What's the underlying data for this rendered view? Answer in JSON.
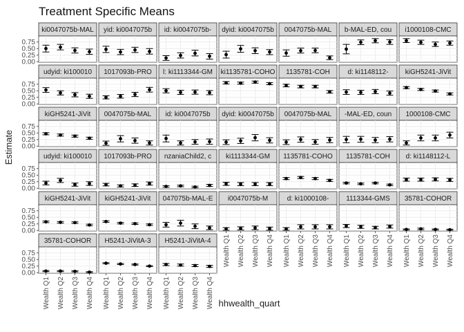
{
  "chart_data": {
    "type": "scatter",
    "title": "Treatment Specific Means",
    "xlabel": "hhwealth_quart",
    "ylabel": "Estimate",
    "categories": [
      "Wealth Q1",
      "Wealth Q2",
      "Wealth Q3",
      "Wealth Q4"
    ],
    "y_ticks": [
      "0.00",
      "0.25",
      "0.50",
      "0.75"
    ],
    "ylim": [
      -0.02,
      0.98
    ],
    "grid": true,
    "error_bars": true,
    "panels": [
      {
        "strip": "ki0047075b-MAL",
        "points": [
          {
            "y": 0.5,
            "lo": 0.37,
            "hi": 0.63
          },
          {
            "y": 0.55,
            "lo": 0.45,
            "hi": 0.66
          },
          {
            "y": 0.43,
            "lo": 0.33,
            "hi": 0.53
          },
          {
            "y": 0.38,
            "lo": 0.28,
            "hi": 0.48
          }
        ]
      },
      {
        "strip": "yid: ki0047075b",
        "points": [
          {
            "y": 0.47,
            "lo": 0.35,
            "hi": 0.59
          },
          {
            "y": 0.37,
            "lo": 0.27,
            "hi": 0.47
          },
          {
            "y": 0.45,
            "lo": 0.35,
            "hi": 0.55
          },
          {
            "y": 0.39,
            "lo": 0.29,
            "hi": 0.5
          }
        ]
      },
      {
        "strip": "id: ki0047075b-",
        "points": [
          {
            "y": 0.14,
            "lo": 0.05,
            "hi": 0.23
          },
          {
            "y": 0.24,
            "lo": 0.14,
            "hi": 0.34
          },
          {
            "y": 0.32,
            "lo": 0.22,
            "hi": 0.44
          },
          {
            "y": 0.21,
            "lo": 0.1,
            "hi": 0.31
          }
        ]
      },
      {
        "strip": "dyid: ki0047075b",
        "points": [
          {
            "y": 0.27,
            "lo": 0.14,
            "hi": 0.4
          },
          {
            "y": 0.49,
            "lo": 0.36,
            "hi": 0.62
          },
          {
            "y": 0.42,
            "lo": 0.31,
            "hi": 0.53
          },
          {
            "y": 0.37,
            "lo": 0.27,
            "hi": 0.46
          }
        ]
      },
      {
        "strip": "0047075b-MAL",
        "points": [
          {
            "y": 0.33,
            "lo": 0.21,
            "hi": 0.45
          },
          {
            "y": 0.42,
            "lo": 0.33,
            "hi": 0.52
          },
          {
            "y": 0.43,
            "lo": 0.34,
            "hi": 0.52
          },
          {
            "y": 0.15,
            "lo": 0.08,
            "hi": 0.22
          }
        ]
      },
      {
        "strip": "b-MAL-ED, cou",
        "points": [
          {
            "y": 0.48,
            "lo": 0.3,
            "hi": 0.66
          },
          {
            "y": 0.74,
            "lo": 0.65,
            "hi": 0.83
          },
          {
            "y": 0.8,
            "lo": 0.72,
            "hi": 0.88
          },
          {
            "y": 0.75,
            "lo": 0.66,
            "hi": 0.84
          }
        ]
      },
      {
        "strip": "i1000108-CMC",
        "points": [
          {
            "y": 0.8,
            "lo": 0.73,
            "hi": 0.88
          },
          {
            "y": 0.74,
            "lo": 0.66,
            "hi": 0.82
          },
          {
            "y": 0.66,
            "lo": 0.58,
            "hi": 0.75
          },
          {
            "y": 0.71,
            "lo": 0.63,
            "hi": 0.79
          }
        ]
      },
      {
        "strip": "udyid: ki100010",
        "points": [
          {
            "y": 0.53,
            "lo": 0.44,
            "hi": 0.62
          },
          {
            "y": 0.42,
            "lo": 0.34,
            "hi": 0.5
          },
          {
            "y": 0.35,
            "lo": 0.27,
            "hi": 0.43
          },
          {
            "y": 0.29,
            "lo": 0.21,
            "hi": 0.37
          }
        ]
      },
      {
        "strip": "1017093b-PRO",
        "points": [
          {
            "y": 0.25,
            "lo": 0.19,
            "hi": 0.31
          },
          {
            "y": 0.29,
            "lo": 0.22,
            "hi": 0.36
          },
          {
            "y": 0.36,
            "lo": 0.28,
            "hi": 0.44
          },
          {
            "y": 0.54,
            "lo": 0.45,
            "hi": 0.63
          }
        ]
      },
      {
        "strip": "l: ki1113344-GM",
        "points": [
          {
            "y": 0.5,
            "lo": 0.42,
            "hi": 0.58
          },
          {
            "y": 0.44,
            "lo": 0.36,
            "hi": 0.52
          },
          {
            "y": 0.45,
            "lo": 0.37,
            "hi": 0.53
          },
          {
            "y": 0.43,
            "lo": 0.35,
            "hi": 0.51
          }
        ]
      },
      {
        "strip": "ki1135781-COHO",
        "points": [
          {
            "y": 0.8,
            "lo": 0.76,
            "hi": 0.85
          },
          {
            "y": 0.79,
            "lo": 0.75,
            "hi": 0.83
          },
          {
            "y": 0.83,
            "lo": 0.79,
            "hi": 0.87
          },
          {
            "y": 0.77,
            "lo": 0.73,
            "hi": 0.81
          }
        ]
      },
      {
        "strip": "1135781-COH",
        "points": [
          {
            "y": 0.7,
            "lo": 0.65,
            "hi": 0.75
          },
          {
            "y": 0.66,
            "lo": 0.61,
            "hi": 0.71
          },
          {
            "y": 0.66,
            "lo": 0.61,
            "hi": 0.71
          },
          {
            "y": 0.46,
            "lo": 0.41,
            "hi": 0.51
          }
        ]
      },
      {
        "strip": "d: ki1148112-",
        "points": [
          {
            "y": 0.45,
            "lo": 0.36,
            "hi": 0.54
          },
          {
            "y": 0.44,
            "lo": 0.36,
            "hi": 0.52
          },
          {
            "y": 0.47,
            "lo": 0.39,
            "hi": 0.55
          },
          {
            "y": 0.41,
            "lo": 0.33,
            "hi": 0.49
          }
        ]
      },
      {
        "strip": "kiGH5241-JiVit",
        "points": [
          {
            "y": 0.62,
            "lo": 0.58,
            "hi": 0.66
          },
          {
            "y": 0.55,
            "lo": 0.51,
            "hi": 0.59
          },
          {
            "y": 0.49,
            "lo": 0.45,
            "hi": 0.53
          },
          {
            "y": 0.38,
            "lo": 0.34,
            "hi": 0.42
          }
        ]
      },
      {
        "strip": "kiGH5241-JiVit",
        "points": [
          {
            "y": 0.47,
            "lo": 0.43,
            "hi": 0.51
          },
          {
            "y": 0.42,
            "lo": 0.38,
            "hi": 0.46
          },
          {
            "y": 0.38,
            "lo": 0.34,
            "hi": 0.42
          },
          {
            "y": 0.3,
            "lo": 0.26,
            "hi": 0.34
          }
        ]
      },
      {
        "strip": "0047075b-MAL",
        "points": [
          {
            "y": 0.11,
            "lo": 0.03,
            "hi": 0.19
          },
          {
            "y": 0.28,
            "lo": 0.16,
            "hi": 0.4
          },
          {
            "y": 0.21,
            "lo": 0.11,
            "hi": 0.31
          },
          {
            "y": 0.12,
            "lo": 0.04,
            "hi": 0.2
          }
        ]
      },
      {
        "strip": "id: ki0047075b",
        "points": [
          {
            "y": 0.29,
            "lo": 0.16,
            "hi": 0.42
          },
          {
            "y": 0.12,
            "lo": 0.04,
            "hi": 0.2
          },
          {
            "y": 0.16,
            "lo": 0.07,
            "hi": 0.25
          },
          {
            "y": 0.17,
            "lo": 0.07,
            "hi": 0.27
          }
        ]
      },
      {
        "strip": "dyid: ki0047075b",
        "points": [
          {
            "y": 0.15,
            "lo": 0.06,
            "hi": 0.24
          },
          {
            "y": 0.2,
            "lo": 0.1,
            "hi": 0.3
          },
          {
            "y": 0.32,
            "lo": 0.2,
            "hi": 0.44
          },
          {
            "y": 0.22,
            "lo": 0.12,
            "hi": 0.32
          }
        ]
      },
      {
        "strip": "0047075b-MAL",
        "points": [
          {
            "y": 0.15,
            "lo": 0.06,
            "hi": 0.24
          },
          {
            "y": 0.25,
            "lo": 0.15,
            "hi": 0.35
          },
          {
            "y": 0.16,
            "lo": 0.07,
            "hi": 0.25
          },
          {
            "y": 0.23,
            "lo": 0.13,
            "hi": 0.33
          }
        ]
      },
      {
        "strip": "-MAL-ED, coun",
        "points": [
          {
            "y": 0.25,
            "lo": 0.13,
            "hi": 0.37
          },
          {
            "y": 0.26,
            "lo": 0.15,
            "hi": 0.37
          },
          {
            "y": 0.23,
            "lo": 0.13,
            "hi": 0.33
          },
          {
            "y": 0.26,
            "lo": 0.16,
            "hi": 0.36
          }
        ]
      },
      {
        "strip": "1000108-CMC",
        "points": [
          {
            "y": 0.12,
            "lo": 0.04,
            "hi": 0.2
          },
          {
            "y": 0.31,
            "lo": 0.2,
            "hi": 0.42
          },
          {
            "y": 0.31,
            "lo": 0.2,
            "hi": 0.42
          },
          {
            "y": 0.42,
            "lo": 0.31,
            "hi": 0.53
          }
        ]
      },
      {
        "strip": "udyid: ki100010",
        "points": [
          {
            "y": 0.2,
            "lo": 0.13,
            "hi": 0.27
          },
          {
            "y": 0.3,
            "lo": 0.22,
            "hi": 0.38
          },
          {
            "y": 0.14,
            "lo": 0.08,
            "hi": 0.2
          },
          {
            "y": 0.18,
            "lo": 0.11,
            "hi": 0.25
          }
        ]
      },
      {
        "strip": "1017093b-PRO",
        "points": [
          {
            "y": 0.14,
            "lo": 0.09,
            "hi": 0.19
          },
          {
            "y": 0.09,
            "lo": 0.05,
            "hi": 0.13
          },
          {
            "y": 0.12,
            "lo": 0.07,
            "hi": 0.17
          },
          {
            "y": 0.18,
            "lo": 0.12,
            "hi": 0.24
          }
        ]
      },
      {
        "strip": "nzaniaChild2, c",
        "points": [
          {
            "y": 0.07,
            "lo": 0.04,
            "hi": 0.1
          },
          {
            "y": 0.09,
            "lo": 0.06,
            "hi": 0.12
          },
          {
            "y": 0.05,
            "lo": 0.02,
            "hi": 0.08
          },
          {
            "y": 0.11,
            "lo": 0.07,
            "hi": 0.15
          }
        ]
      },
      {
        "strip": "ki1113344-GM",
        "points": [
          {
            "y": 0.17,
            "lo": 0.11,
            "hi": 0.23
          },
          {
            "y": 0.16,
            "lo": 0.1,
            "hi": 0.22
          },
          {
            "y": 0.16,
            "lo": 0.1,
            "hi": 0.22
          },
          {
            "y": 0.16,
            "lo": 0.1,
            "hi": 0.22
          }
        ]
      },
      {
        "strip": "1135781-COHO",
        "points": [
          {
            "y": 0.37,
            "lo": 0.33,
            "hi": 0.41
          },
          {
            "y": 0.41,
            "lo": 0.37,
            "hi": 0.45
          },
          {
            "y": 0.37,
            "lo": 0.33,
            "hi": 0.41
          },
          {
            "y": 0.3,
            "lo": 0.26,
            "hi": 0.34
          }
        ]
      },
      {
        "strip": "1135781-COH",
        "points": [
          {
            "y": 0.2,
            "lo": 0.17,
            "hi": 0.23
          },
          {
            "y": 0.17,
            "lo": 0.14,
            "hi": 0.2
          },
          {
            "y": 0.2,
            "lo": 0.17,
            "hi": 0.23
          },
          {
            "y": 0.13,
            "lo": 0.1,
            "hi": 0.16
          }
        ]
      },
      {
        "strip": "d: ki1148112-L",
        "points": [
          {
            "y": 0.33,
            "lo": 0.27,
            "hi": 0.39
          },
          {
            "y": 0.33,
            "lo": 0.27,
            "hi": 0.39
          },
          {
            "y": 0.34,
            "lo": 0.28,
            "hi": 0.4
          },
          {
            "y": 0.32,
            "lo": 0.26,
            "hi": 0.38
          }
        ]
      },
      {
        "strip": "kiGH5241-JiVit",
        "points": [
          {
            "y": 0.33,
            "lo": 0.3,
            "hi": 0.36
          },
          {
            "y": 0.31,
            "lo": 0.28,
            "hi": 0.34
          },
          {
            "y": 0.3,
            "lo": 0.27,
            "hi": 0.33
          },
          {
            "y": 0.21,
            "lo": 0.18,
            "hi": 0.24
          }
        ]
      },
      {
        "strip": "kiGH5241-JiVit",
        "points": [
          {
            "y": 0.34,
            "lo": 0.31,
            "hi": 0.37
          },
          {
            "y": 0.28,
            "lo": 0.25,
            "hi": 0.31
          },
          {
            "y": 0.26,
            "lo": 0.23,
            "hi": 0.29
          },
          {
            "y": 0.22,
            "lo": 0.19,
            "hi": 0.25
          }
        ]
      },
      {
        "strip": "047075b-MAL-E",
        "points": [
          {
            "y": 0.22,
            "lo": 0.13,
            "hi": 0.31
          },
          {
            "y": 0.28,
            "lo": 0.17,
            "hi": 0.39
          },
          {
            "y": 0.16,
            "lo": 0.07,
            "hi": 0.25
          },
          {
            "y": 0.1,
            "lo": 0.03,
            "hi": 0.17
          }
        ]
      },
      {
        "strip": "i0047075b-M",
        "points": [
          {
            "y": 0.06,
            "lo": 0.01,
            "hi": 0.11
          },
          {
            "y": 0.08,
            "lo": 0.02,
            "hi": 0.14
          },
          {
            "y": 0.1,
            "lo": 0.03,
            "hi": 0.17
          },
          {
            "y": 0.07,
            "lo": 0.01,
            "hi": 0.13
          }
        ]
      },
      {
        "strip": "d: ki1000108-",
        "points": [
          {
            "y": 0.06,
            "lo": 0.01,
            "hi": 0.11
          },
          {
            "y": 0.14,
            "lo": 0.06,
            "hi": 0.22
          },
          {
            "y": 0.14,
            "lo": 0.06,
            "hi": 0.22
          },
          {
            "y": 0.14,
            "lo": 0.06,
            "hi": 0.22
          }
        ]
      },
      {
        "strip": "1113344-GMS",
        "points": [
          {
            "y": 0.17,
            "lo": 0.11,
            "hi": 0.23
          },
          {
            "y": 0.14,
            "lo": 0.08,
            "hi": 0.2
          },
          {
            "y": 0.11,
            "lo": 0.06,
            "hi": 0.16
          },
          {
            "y": 0.15,
            "lo": 0.09,
            "hi": 0.21
          }
        ]
      },
      {
        "strip": "35781-COHOR",
        "points": [
          {
            "y": 0.04,
            "lo": 0.02,
            "hi": 0.06
          },
          {
            "y": 0.06,
            "lo": 0.03,
            "hi": 0.09
          },
          {
            "y": 0.04,
            "lo": 0.02,
            "hi": 0.06
          },
          {
            "y": 0.03,
            "lo": 0.01,
            "hi": 0.05
          }
        ]
      },
      {
        "strip": "35781-COHOR",
        "points": [
          {
            "y": 0.06,
            "lo": 0.04,
            "hi": 0.08
          },
          {
            "y": 0.06,
            "lo": 0.04,
            "hi": 0.08
          },
          {
            "y": 0.05,
            "lo": 0.03,
            "hi": 0.07
          },
          {
            "y": 0.02,
            "lo": 0.0,
            "hi": 0.04
          }
        ]
      },
      {
        "strip": "H5241-JiVitA-3",
        "points": [
          {
            "y": 0.36,
            "lo": 0.34,
            "hi": 0.38
          },
          {
            "y": 0.33,
            "lo": 0.31,
            "hi": 0.35
          },
          {
            "y": 0.31,
            "lo": 0.29,
            "hi": 0.33
          },
          {
            "y": 0.25,
            "lo": 0.23,
            "hi": 0.27
          }
        ]
      },
      {
        "strip": "H5241-JiVitA-4",
        "points": [
          {
            "y": 0.31,
            "lo": 0.27,
            "hi": 0.35
          },
          {
            "y": 0.29,
            "lo": 0.25,
            "hi": 0.33
          },
          {
            "y": 0.27,
            "lo": 0.23,
            "hi": 0.31
          },
          {
            "y": 0.24,
            "lo": 0.2,
            "hi": 0.28
          }
        ]
      }
    ]
  }
}
